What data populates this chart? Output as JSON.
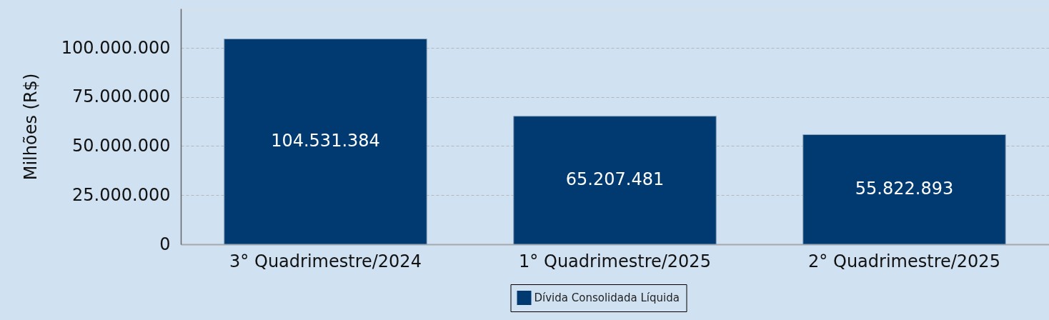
{
  "chart_data": {
    "type": "bar",
    "ylabel": "Milhões (R$)",
    "categories": [
      "3° Quadrimestre/2024",
      "1° Quadrimestre/2025",
      "2° Quadrimestre/2025"
    ],
    "series": [
      {
        "name": "Dívida Consolidada Líquida",
        "color": "#003a70",
        "values": [
          104531384,
          65207481,
          55822893
        ],
        "value_labels": [
          "104.531.384",
          "65.207.481",
          "55.822.893"
        ]
      }
    ],
    "ylim": [
      0,
      120000000
    ],
    "yticks": [
      0,
      {
        "value": 25000000,
        "label": "25.000.000"
      },
      {
        "value": 50000000,
        "label": "50.000.000"
      },
      {
        "value": 75000000,
        "label": "75.000.000"
      },
      {
        "value": 100000000,
        "label": "100.000.000"
      }
    ],
    "grid": "y",
    "legend": "bottom"
  }
}
